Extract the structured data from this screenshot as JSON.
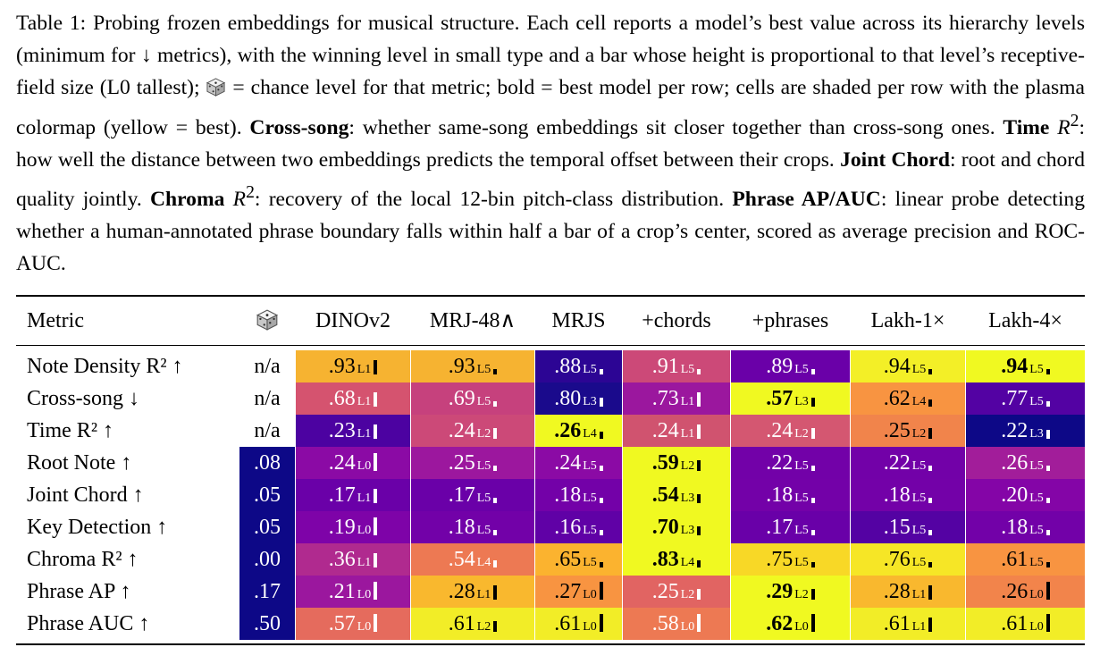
{
  "caption": {
    "p1": "Table 1: Probing frozen embeddings for musical structure. Each cell reports a model’s best value across its hierarchy levels (minimum for ↓ metrics), with the winning level in small type and a bar whose height is proportional to that level’s receptive-field size (L0 tallest);",
    "p2": "= chance level for that metric; bold = best model per row; cells are shaded per row with the plasma colormap (yellow = best).",
    "cross_term": "Cross-song",
    "cross_def": ": whether same-song embeddings sit closer together than cross-song ones.",
    "time_term": "Time",
    "time_def": ": how well the distance between two embeddings predicts the temporal offset between their crops.",
    "chord_term": "Joint Chord",
    "chord_def": ": root and chord quality jointly.",
    "chroma_term": "Chroma",
    "chroma_def": ": recovery of the local 12-bin pitch-class distribution.",
    "phrase_term": "Phrase AP/AUC",
    "phrase_def": ": linear probe detecting whether a human-annotated phrase boundary falls within half a bar of a crop’s center, scored as average precision and ROC-AUC.",
    "r_sym": "R",
    "sq": "2"
  },
  "table": {
    "metric_header": "Metric",
    "chance_icon": "dice-icon",
    "models": [
      "DINOv2",
      "MRJ-48∧",
      "MRJS",
      "+chords",
      "+phrases",
      "Lakh-1×",
      "Lakh-4×"
    ],
    "rows": [
      {
        "label": "Note Density R² ↑",
        "chance": "n/a",
        "chance_color": "#ffffff",
        "cells": [
          {
            "v": ".93",
            "l": "L1",
            "c": "#f6b331"
          },
          {
            "v": ".93",
            "l": "L5",
            "c": "#f6b331"
          },
          {
            "v": ".88",
            "l": "L5",
            "c": "#2c0594"
          },
          {
            "v": ".91",
            "l": "L5",
            "c": "#cc4978"
          },
          {
            "v": ".89",
            "l": "L5",
            "c": "#6a00a8"
          },
          {
            "v": ".94",
            "l": "L5",
            "c": "#f3ef27"
          },
          {
            "v": ".94",
            "l": "L5",
            "c": "#f0f921",
            "b": true
          }
        ]
      },
      {
        "label": "Cross-song ↓",
        "chance": "n/a",
        "chance_color": "#ffffff",
        "cells": [
          {
            "v": ".68",
            "l": "L1",
            "c": "#d5536f"
          },
          {
            "v": ".69",
            "l": "L5",
            "c": "#c6417d"
          },
          {
            "v": ".80",
            "l": "L3",
            "c": "#1a0a8c"
          },
          {
            "v": ".73",
            "l": "L1",
            "c": "#9b179e"
          },
          {
            "v": ".57",
            "l": "L3",
            "c": "#f0f921",
            "b": true
          },
          {
            "v": ".62",
            "l": "L4",
            "c": "#f89441"
          },
          {
            "v": ".77",
            "l": "L5",
            "c": "#5302a3"
          }
        ]
      },
      {
        "label": "Time R² ↑",
        "chance": "n/a",
        "chance_color": "#ffffff",
        "cells": [
          {
            "v": ".23",
            "l": "L1",
            "c": "#4c02a1"
          },
          {
            "v": ".24",
            "l": "L2",
            "c": "#cc4978"
          },
          {
            "v": ".26",
            "l": "L4",
            "c": "#f0f921",
            "b": true
          },
          {
            "v": ".24",
            "l": "L1",
            "c": "#d0536f"
          },
          {
            "v": ".24",
            "l": "L2",
            "c": "#d45771"
          },
          {
            "v": ".25",
            "l": "L2",
            "c": "#f1844b"
          },
          {
            "v": ".22",
            "l": "L3",
            "c": "#0d0887"
          }
        ]
      },
      {
        "label": "Root Note ↑",
        "chance": ".08",
        "chance_color": "#0d0887",
        "cells": [
          {
            "v": ".24",
            "l": "L0",
            "c": "#8b0aa5"
          },
          {
            "v": ".25",
            "l": "L5",
            "c": "#9c179e"
          },
          {
            "v": ".24",
            "l": "L5",
            "c": "#8b0aa5"
          },
          {
            "v": ".59",
            "l": "L2",
            "c": "#f0f921",
            "b": true
          },
          {
            "v": ".22",
            "l": "L5",
            "c": "#7201a8"
          },
          {
            "v": ".22",
            "l": "L5",
            "c": "#7201a8"
          },
          {
            "v": ".26",
            "l": "L5",
            "c": "#a21d9a"
          }
        ]
      },
      {
        "label": "Joint Chord ↑",
        "chance": ".05",
        "chance_color": "#0d0887",
        "cells": [
          {
            "v": ".17",
            "l": "L1",
            "c": "#6a00a8"
          },
          {
            "v": ".17",
            "l": "L5",
            "c": "#6a00a8"
          },
          {
            "v": ".18",
            "l": "L5",
            "c": "#7301a8"
          },
          {
            "v": ".54",
            "l": "L3",
            "c": "#f0f921",
            "b": true
          },
          {
            "v": ".18",
            "l": "L5",
            "c": "#7301a8"
          },
          {
            "v": ".18",
            "l": "L5",
            "c": "#7301a8"
          },
          {
            "v": ".20",
            "l": "L5",
            "c": "#8405a7"
          }
        ]
      },
      {
        "label": "Key Detection ↑",
        "chance": ".05",
        "chance_color": "#0d0887",
        "cells": [
          {
            "v": ".19",
            "l": "L0",
            "c": "#7e03a8"
          },
          {
            "v": ".18",
            "l": "L5",
            "c": "#7201a8"
          },
          {
            "v": ".16",
            "l": "L5",
            "c": "#6001a6"
          },
          {
            "v": ".70",
            "l": "L3",
            "c": "#f0f921",
            "b": true
          },
          {
            "v": ".17",
            "l": "L5",
            "c": "#6900a8"
          },
          {
            "v": ".15",
            "l": "L5",
            "c": "#5402a3"
          },
          {
            "v": ".18",
            "l": "L5",
            "c": "#7201a8"
          }
        ]
      },
      {
        "label": "Chroma R² ↑",
        "chance": ".00",
        "chance_color": "#0d0887",
        "cells": [
          {
            "v": ".36",
            "l": "L1",
            "c": "#b02a8f"
          },
          {
            "v": ".54",
            "l": "L4",
            "c": "#ed7953"
          },
          {
            "v": ".65",
            "l": "L5",
            "c": "#fbb32f"
          },
          {
            "v": ".83",
            "l": "L4",
            "c": "#f0f921",
            "b": true
          },
          {
            "v": ".75",
            "l": "L5",
            "c": "#f8d826"
          },
          {
            "v": ".76",
            "l": "L5",
            "c": "#f6e626"
          },
          {
            "v": ".61",
            "l": "L5",
            "c": "#f89441"
          }
        ]
      },
      {
        "label": "Phrase AP ↑",
        "chance": ".17",
        "chance_color": "#0d0887",
        "cells": [
          {
            "v": ".21",
            "l": "L0",
            "c": "#9b179e"
          },
          {
            "v": ".28",
            "l": "L1",
            "c": "#f9b82e"
          },
          {
            "v": ".27",
            "l": "L0",
            "c": "#f89441"
          },
          {
            "v": ".25",
            "l": "L2",
            "c": "#e16462"
          },
          {
            "v": ".29",
            "l": "L2",
            "c": "#f0f921",
            "b": true
          },
          {
            "v": ".28",
            "l": "L1",
            "c": "#f9b82e"
          },
          {
            "v": ".26",
            "l": "L0",
            "c": "#f2844b"
          }
        ]
      },
      {
        "label": "Phrase AUC ↑",
        "chance": ".50",
        "chance_color": "#0d0887",
        "cells": [
          {
            "v": ".57",
            "l": "L0",
            "c": "#e56b5d"
          },
          {
            "v": ".61",
            "l": "L2",
            "c": "#f2ed27"
          },
          {
            "v": ".61",
            "l": "L0",
            "c": "#f2ed27"
          },
          {
            "v": ".58",
            "l": "L0",
            "c": "#ed7953"
          },
          {
            "v": ".62",
            "l": "L0",
            "c": "#f0f921",
            "b": true
          },
          {
            "v": ".61",
            "l": "L1",
            "c": "#f2ed27"
          },
          {
            "v": ".61",
            "l": "L0",
            "c": "#f2ed27"
          }
        ]
      }
    ]
  }
}
